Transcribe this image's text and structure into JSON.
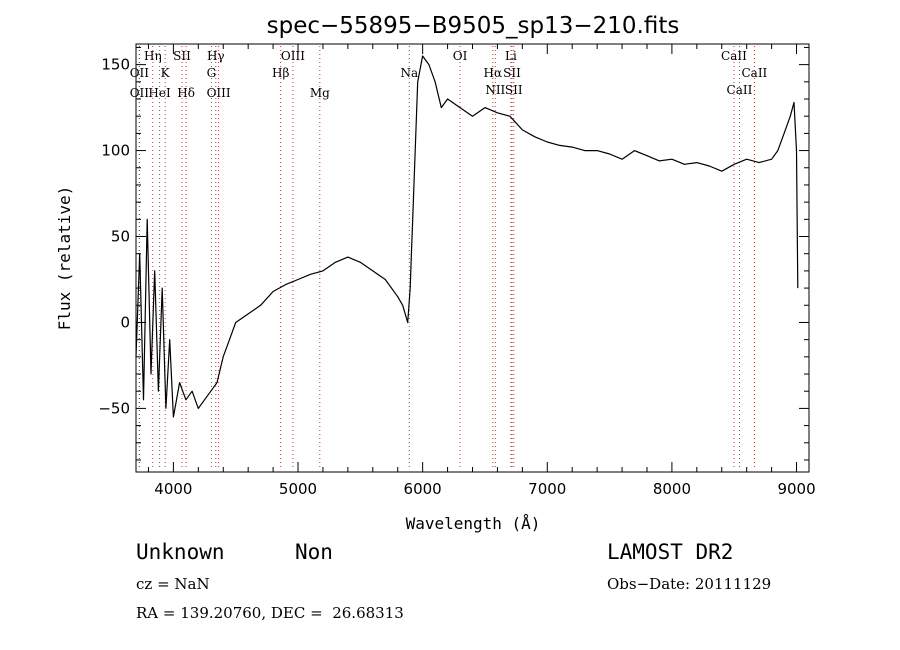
{
  "chart_data": {
    "type": "line",
    "title": "spec−55895−B9505_sp13−210.fits",
    "xlabel": "Wavelength (Å)",
    "ylabel": "Flux (relative)",
    "xlim": [
      3700,
      9100
    ],
    "ylim": [
      -87,
      162
    ],
    "x_ticks": [
      {
        "value": 4000,
        "label": "4000"
      },
      {
        "value": 5000,
        "label": "5000"
      },
      {
        "value": 6000,
        "label": "6000"
      },
      {
        "value": 7000,
        "label": "7000"
      },
      {
        "value": 8000,
        "label": "8000"
      },
      {
        "value": 9000,
        "label": "9000"
      }
    ],
    "y_ticks": [
      {
        "value": -50,
        "label": "−50"
      },
      {
        "value": 0,
        "label": "0"
      },
      {
        "value": 50,
        "label": "50"
      },
      {
        "value": 100,
        "label": "100"
      },
      {
        "value": 150,
        "label": "150"
      }
    ],
    "grid": false,
    "series": [
      {
        "x": [
          3700,
          3730,
          3760,
          3790,
          3820,
          3850,
          3880,
          3910,
          3940,
          3970,
          4000,
          4050,
          4100,
          4150,
          4200,
          4250,
          4300,
          4350,
          4400,
          4450,
          4500,
          4600,
          4700,
          4800,
          4900,
          5000,
          5100,
          5200,
          5300,
          5400,
          5500,
          5600,
          5700,
          5800,
          5840,
          5860,
          5880,
          5900,
          5910,
          5920,
          5940,
          5960,
          6000,
          6050,
          6100,
          6150,
          6200,
          6300,
          6400,
          6500,
          6600,
          6700,
          6800,
          6900,
          7000,
          7100,
          7200,
          7300,
          7400,
          7500,
          7600,
          7700,
          7800,
          7900,
          8000,
          8100,
          8200,
          8300,
          8400,
          8500,
          8600,
          8700,
          8800,
          8850,
          8900,
          8950,
          8980,
          9000,
          9010
        ],
        "y": [
          -20,
          40,
          -45,
          60,
          -30,
          30,
          -40,
          20,
          -50,
          -10,
          -55,
          -35,
          -45,
          -40,
          -50,
          -45,
          -40,
          -35,
          -20,
          -10,
          0,
          5,
          10,
          18,
          22,
          25,
          28,
          30,
          35,
          38,
          35,
          30,
          25,
          15,
          10,
          5,
          0,
          20,
          40,
          60,
          100,
          140,
          155,
          150,
          140,
          125,
          130,
          125,
          120,
          125,
          122,
          120,
          112,
          108,
          105,
          103,
          102,
          100,
          100,
          98,
          95,
          100,
          97,
          94,
          95,
          92,
          93,
          91,
          88,
          92,
          95,
          93,
          95,
          100,
          110,
          120,
          128,
          100,
          20
        ]
      }
    ],
    "spectral_lines": [
      {
        "label": "OII",
        "x": 3727,
        "row": 2
      },
      {
        "label": "OII",
        "x": 3727,
        "row": 4
      },
      {
        "label": "Hη",
        "x": 3835,
        "row": 1
      },
      {
        "label": "HeI",
        "x": 3889,
        "row": 4
      },
      {
        "label": "K",
        "x": 3934,
        "row": 2
      },
      {
        "label": "SII",
        "x": 4069,
        "row": 1
      },
      {
        "label": "Hδ",
        "x": 4102,
        "row": 4
      },
      {
        "label": "Hγ",
        "x": 4340,
        "row": 1
      },
      {
        "label": "G",
        "x": 4305,
        "row": 2
      },
      {
        "label": "OIII",
        "x": 4363,
        "row": 4
      },
      {
        "label": "OIII",
        "x": 4959,
        "row": 1
      },
      {
        "label": "Hβ",
        "x": 4861,
        "row": 2
      },
      {
        "label": "Mg",
        "x": 5175,
        "row": 4
      },
      {
        "label": "Na",
        "x": 5893,
        "row": 2
      },
      {
        "label": "OI",
        "x": 6300,
        "row": 1
      },
      {
        "label": "Hα",
        "x": 6563,
        "row": 2
      },
      {
        "label": "NII",
        "x": 6583,
        "row": 3
      },
      {
        "label": "Li",
        "x": 6708,
        "row": 1
      },
      {
        "label": "SII",
        "x": 6717,
        "row": 2
      },
      {
        "label": "SII",
        "x": 6731,
        "row": 3
      },
      {
        "label": "CaII",
        "x": 8498,
        "row": 1
      },
      {
        "label": "CaII",
        "x": 8662,
        "row": 2
      },
      {
        "label": "CaII",
        "x": 8542,
        "row": 3
      }
    ]
  },
  "footer": {
    "classification": "Unknown",
    "subclass": "Non",
    "survey": "LAMOST DR2",
    "cz": "cz = NaN",
    "obs_date": "Obs−Date: 20111129",
    "coords": "RA = 139.20760, DEC =  26.68313"
  },
  "colors": {
    "line": "#000000",
    "marker": "#c0392b"
  }
}
